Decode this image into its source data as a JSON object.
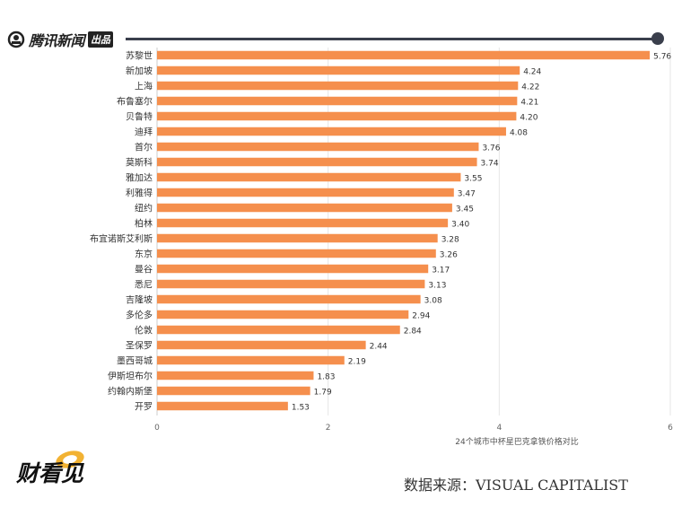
{
  "header": {
    "logo_text": "腾讯新闻",
    "logo_badge": "出品",
    "logo_icon": "tencent-news-circle-icon"
  },
  "footer": {
    "brand_text": "财看见",
    "brand_icon": "caikanjian-logo-icon",
    "source": "数据来源：VISUAL CAPITALIST"
  },
  "colors": {
    "bar": "#F58F4D",
    "rule": "#3a3f4c",
    "grid": "#e6e6e6",
    "text": "#333333"
  },
  "chart_data": {
    "type": "bar",
    "orientation": "horizontal",
    "categories": [
      "苏黎世",
      "新加坡",
      "上海",
      "布鲁塞尔",
      "贝鲁特",
      "迪拜",
      "首尔",
      "莫斯科",
      "雅加达",
      "利雅得",
      "纽约",
      "柏林",
      "布宜诺斯艾利斯",
      "东京",
      "曼谷",
      "悉尼",
      "吉隆坡",
      "多伦多",
      "伦敦",
      "圣保罗",
      "墨西哥城",
      "伊斯坦布尔",
      "约翰内斯堡",
      "开罗"
    ],
    "values": [
      5.76,
      4.24,
      4.22,
      4.21,
      4.2,
      4.08,
      3.76,
      3.74,
      3.55,
      3.47,
      3.45,
      3.4,
      3.28,
      3.26,
      3.17,
      3.13,
      3.08,
      2.94,
      2.84,
      2.44,
      2.19,
      1.83,
      1.79,
      1.53
    ],
    "value_labels": [
      "5.76",
      "4.24",
      "4.22",
      "4.21",
      "4.20",
      "4.08",
      "3.76",
      "3.74",
      "3.55",
      "3.47",
      "3.45",
      "3.40",
      "3.28",
      "3.26",
      "3.17",
      "3.13",
      "3.08",
      "2.94",
      "2.84",
      "2.44",
      "2.19",
      "1.83",
      "1.79",
      "1.53"
    ],
    "xlim": [
      0,
      6
    ],
    "xticks": [
      "0",
      "2",
      "4",
      "6"
    ],
    "xlabel": "24个城市中杯星巴克拿铁价格对比",
    "ylabel": "",
    "grid": true,
    "legend": "none"
  }
}
